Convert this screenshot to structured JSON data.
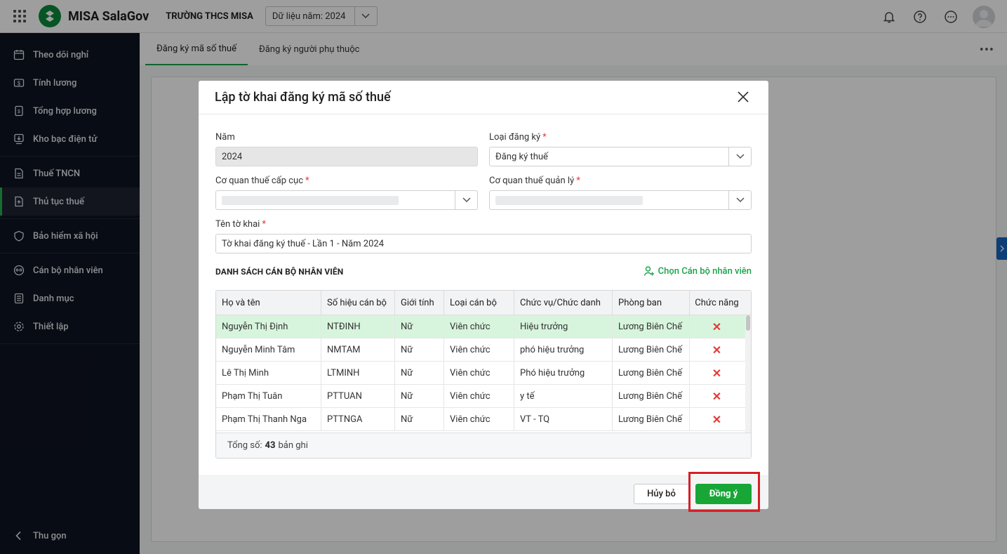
{
  "app": {
    "brand": "MISA SalaGov",
    "org": "TRƯỜNG THCS MISA",
    "year_select": "Dữ liệu năm: 2024",
    "icons": [
      "apps-icon",
      "bell-icon",
      "help-icon",
      "more-icon",
      "avatar"
    ]
  },
  "sidebar": {
    "items": [
      {
        "label": "Theo dõi nghỉ",
        "icon": "calendar-icon"
      },
      {
        "label": "Tính lương",
        "icon": "salary-icon"
      },
      {
        "label": "Tổng hợp lương",
        "icon": "summary-icon"
      },
      {
        "label": "Kho bạc điện tử",
        "icon": "treasury-icon"
      },
      {
        "label": "Thuế TNCN",
        "icon": "tax-icon"
      },
      {
        "label": "Thủ tục thuế",
        "icon": "tax-procedure-icon"
      },
      {
        "label": "Bảo hiểm xã hội",
        "icon": "insurance-icon"
      },
      {
        "label": "Cán bộ nhân viên",
        "icon": "staff-icon"
      },
      {
        "label": "Danh mục",
        "icon": "catalog-icon"
      },
      {
        "label": "Thiết lập",
        "icon": "settings-icon"
      }
    ],
    "collapse": "Thu gọn",
    "active": "Thủ tục thuế"
  },
  "tabs": [
    {
      "label": "Đăng ký mã số thuế",
      "active": true
    },
    {
      "label": "Đăng ký người phụ thuộc",
      "active": false
    }
  ],
  "tabs_more": "•••",
  "dialog": {
    "title": "Lập tờ khai đăng ký mã số thuế",
    "year_label": "Năm",
    "year_value": "2024",
    "reg_type_label": "Loại đăng ký",
    "reg_type_value": "Đăng ký thuế",
    "tax_dept_label": "Cơ quan thuế cấp cục",
    "tax_office_label": "Cơ quan thuế quản lý",
    "form_name_label": "Tên tờ khai",
    "form_name_value": "Tờ khai đăng ký thuế - Lần 1 - Năm 2024",
    "required_mark": "*",
    "section_title": "DANH SÁCH CÁN BỘ NHÂN VIÊN",
    "choose_staff": "Chọn Cán bộ nhân viên",
    "columns": [
      "Họ và tên",
      "Số hiệu cán bộ",
      "Giới tính",
      "Loại cán bộ",
      "Chức vụ/Chức danh",
      "Phòng ban",
      "Chức năng"
    ],
    "rows": [
      [
        "Nguyễn Thị Định",
        "NTĐINH",
        "Nữ",
        "Viên chức",
        "Hiệu trưởng",
        "Lương Biên Chế"
      ],
      [
        "Nguyễn Minh Tâm",
        "NMTAM",
        "Nữ",
        "Viên chức",
        "phó hiệu trưởng",
        "Lương Biên Chế"
      ],
      [
        "Lê Thị Minh",
        "LTMINH",
        "Nữ",
        "Viên chức",
        "Phó hiệu trưởng",
        "Lương Biên Chế"
      ],
      [
        "Phạm Thị Tuân",
        "PTTUAN",
        "Nữ",
        "Viên chức",
        "y tế",
        "Lương Biên Chế"
      ],
      [
        "Phạm Thị Thanh Nga",
        "PTTNGA",
        "Nữ",
        "Viên chức",
        "VT - TQ",
        "Lương Biên Chế"
      ]
    ],
    "total_label": "Tổng số:",
    "total_count": "43",
    "total_suffix": "bản ghi",
    "cancel": "Hủy bỏ",
    "ok": "Đồng ý"
  },
  "colors": {
    "accent": "#18a637",
    "sidebar_bg": "#0e1421",
    "highlight": "#d61f26",
    "delete": "#e53935"
  }
}
